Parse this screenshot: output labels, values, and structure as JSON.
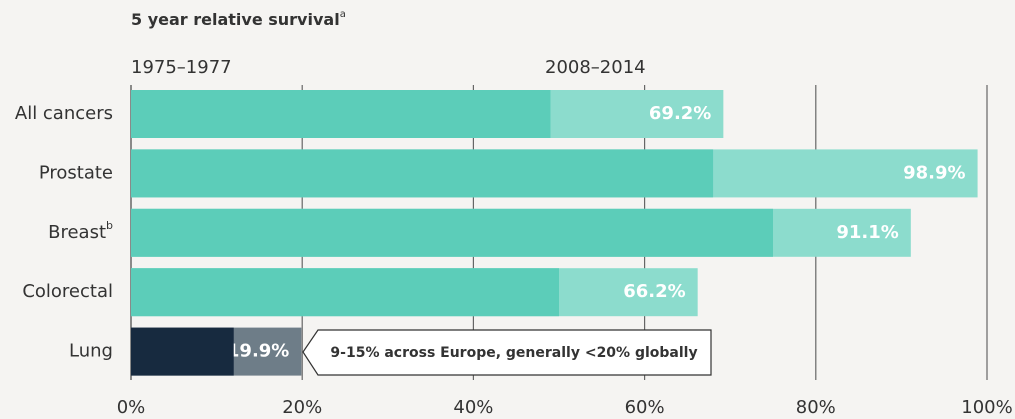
{
  "chart_data": {
    "type": "bar",
    "orientation": "horizontal",
    "overlap": true,
    "title": "5 year relative survival",
    "title_superscript": "a",
    "categories": [
      "All cancers",
      "Prostate",
      "Breast",
      "Colorectal",
      "Lung"
    ],
    "category_superscripts": [
      null,
      null,
      "b",
      null,
      null
    ],
    "series": [
      {
        "name": "1975–1977",
        "color": "#5ccdb9",
        "values": [
          49,
          68,
          75,
          50,
          12
        ],
        "point_colors": [
          null,
          null,
          null,
          null,
          "#172a3f"
        ]
      },
      {
        "name": "2008–2014",
        "color": "#8cdccd",
        "values": [
          69.2,
          98.9,
          91.1,
          66.2,
          19.9
        ],
        "value_labels": [
          "69.2%",
          "98.9%",
          "91.1%",
          "66.2%",
          "19.9%"
        ],
        "point_colors": [
          null,
          null,
          null,
          null,
          "#6e7d88"
        ]
      }
    ],
    "xlim": [
      0,
      100
    ],
    "xticks": [
      {
        "value": 0,
        "label": "0%"
      },
      {
        "value": 20,
        "label": "20%"
      },
      {
        "value": 40,
        "label": "40%"
      },
      {
        "value": 60,
        "label": "60%"
      },
      {
        "value": 80,
        "label": "80%"
      },
      {
        "value": 100,
        "label": "100%"
      }
    ],
    "grid": true,
    "annotation": "9-15% across Europe, generally <20% globally"
  }
}
